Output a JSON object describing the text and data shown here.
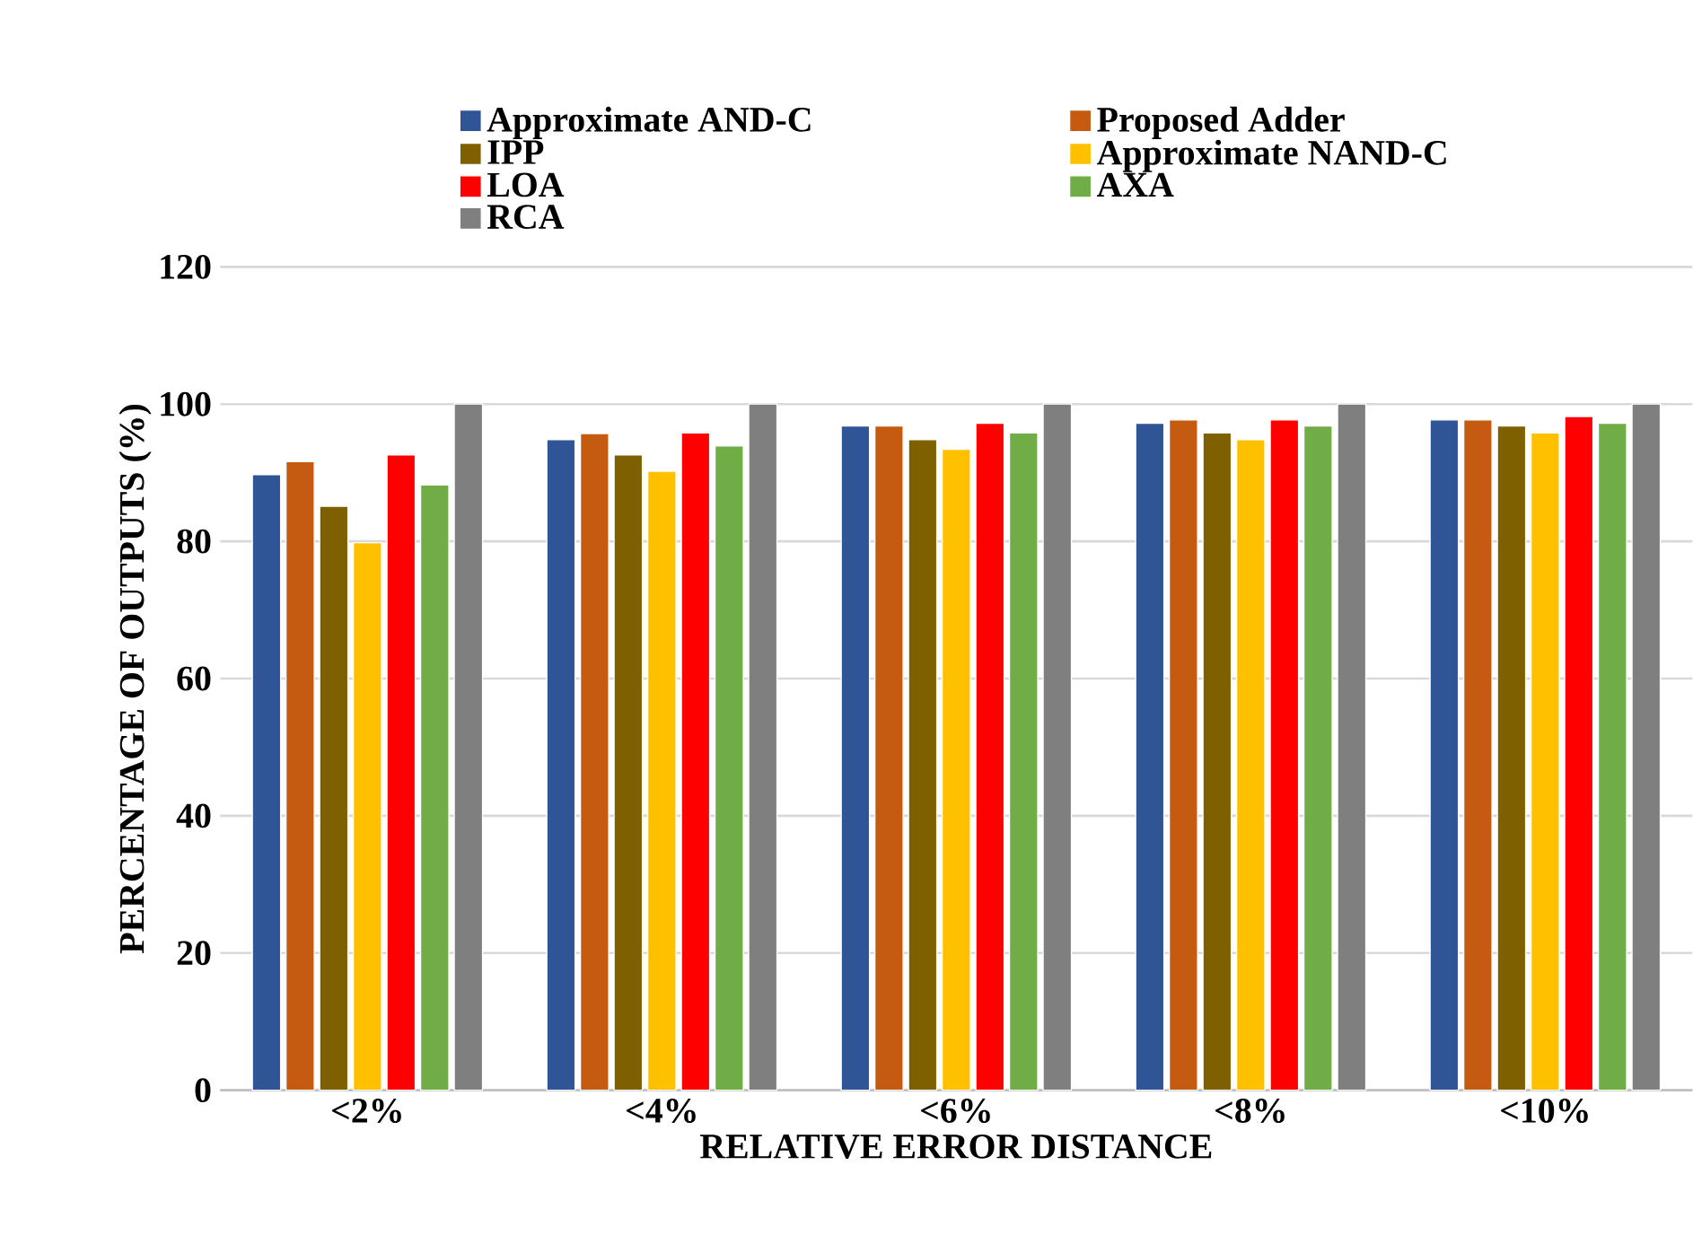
{
  "chart_data": {
    "type": "bar",
    "xlabel": "RELATIVE ERROR DISTANCE",
    "ylabel": "PERCENTAGE OF OUTPUTS (%)",
    "categories": [
      "<2%",
      "<4%",
      "<6%",
      "<8%",
      "<10%"
    ],
    "series": [
      {
        "name": "Approximate AND-C",
        "color": "#2f5597",
        "values": [
          89.7,
          94.8,
          96.8,
          97.2,
          97.7
        ]
      },
      {
        "name": "Proposed Adder",
        "color": "#c55a11",
        "values": [
          91.6,
          95.7,
          96.8,
          97.7,
          97.7
        ]
      },
      {
        "name": "IPP",
        "color": "#7f6000",
        "values": [
          85.1,
          92.6,
          94.8,
          95.8,
          96.8
        ]
      },
      {
        "name": "Approximate NAND-C",
        "color": "#ffc000",
        "values": [
          79.8,
          90.2,
          93.4,
          94.8,
          95.8
        ]
      },
      {
        "name": "LOA",
        "color": "#ff0000",
        "values": [
          92.6,
          95.8,
          97.2,
          97.7,
          98.2
        ]
      },
      {
        "name": "AXA",
        "color": "#70ad47",
        "values": [
          88.2,
          93.9,
          95.8,
          96.8,
          97.2
        ]
      },
      {
        "name": "RCA",
        "color": "#7f7f7f",
        "values": [
          100,
          100,
          100,
          100,
          100
        ]
      }
    ],
    "ylim": [
      0,
      120
    ],
    "yticks": [
      0,
      20,
      40,
      60,
      80,
      100,
      120
    ],
    "grid": "y",
    "legend": "top"
  }
}
